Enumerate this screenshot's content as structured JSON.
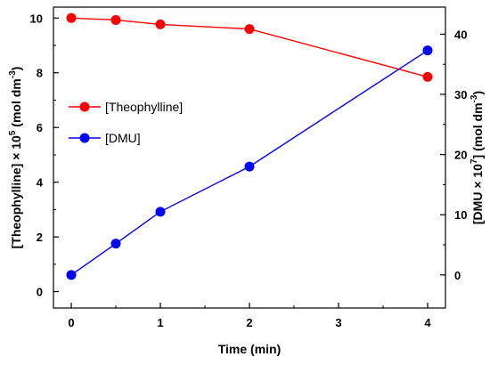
{
  "chart_data": {
    "type": "line",
    "x_axis": {
      "label": "Time (min)",
      "range": [
        -0.2,
        4.2
      ],
      "ticks": [
        0,
        1,
        2,
        3,
        4
      ],
      "tick_labels": [
        "0",
        "1",
        "2",
        "3",
        "4"
      ]
    },
    "y_left": {
      "label_prefix": "[Theophylline] × 10",
      "label_exp": "5",
      "label_unit": " (mol dm",
      "label_unit_exp": "-3",
      "label_close": ")",
      "range": [
        -0.6,
        10.4
      ],
      "ticks": [
        0,
        2,
        4,
        6,
        8,
        10
      ],
      "tick_labels": [
        "0",
        "2",
        "4",
        "6",
        "8",
        "10"
      ]
    },
    "y_right": {
      "label_prefix": "[DMU × 10",
      "label_exp": "7",
      "label_unit": "] (mol dm",
      "label_unit_exp": "-3",
      "label_close": ")",
      "range": [
        -5.5,
        44.5
      ],
      "ticks": [
        0,
        10,
        20,
        30,
        40
      ],
      "tick_labels": [
        "0",
        "10",
        "20",
        "30",
        "40"
      ]
    },
    "series": [
      {
        "name": "[Theophylline]",
        "axis": "left",
        "color": "#ff0000",
        "x": [
          0,
          0.5,
          1,
          2,
          4
        ],
        "y": [
          10.0,
          9.93,
          9.77,
          9.6,
          7.85
        ]
      },
      {
        "name": "[DMU]",
        "axis": "right",
        "color": "#0000ff",
        "x": [
          0,
          0.5,
          1,
          2,
          4
        ],
        "y": [
          0,
          5.2,
          10.5,
          18.0,
          37.3
        ]
      }
    ],
    "legend_position": "center-left",
    "grid": false
  }
}
